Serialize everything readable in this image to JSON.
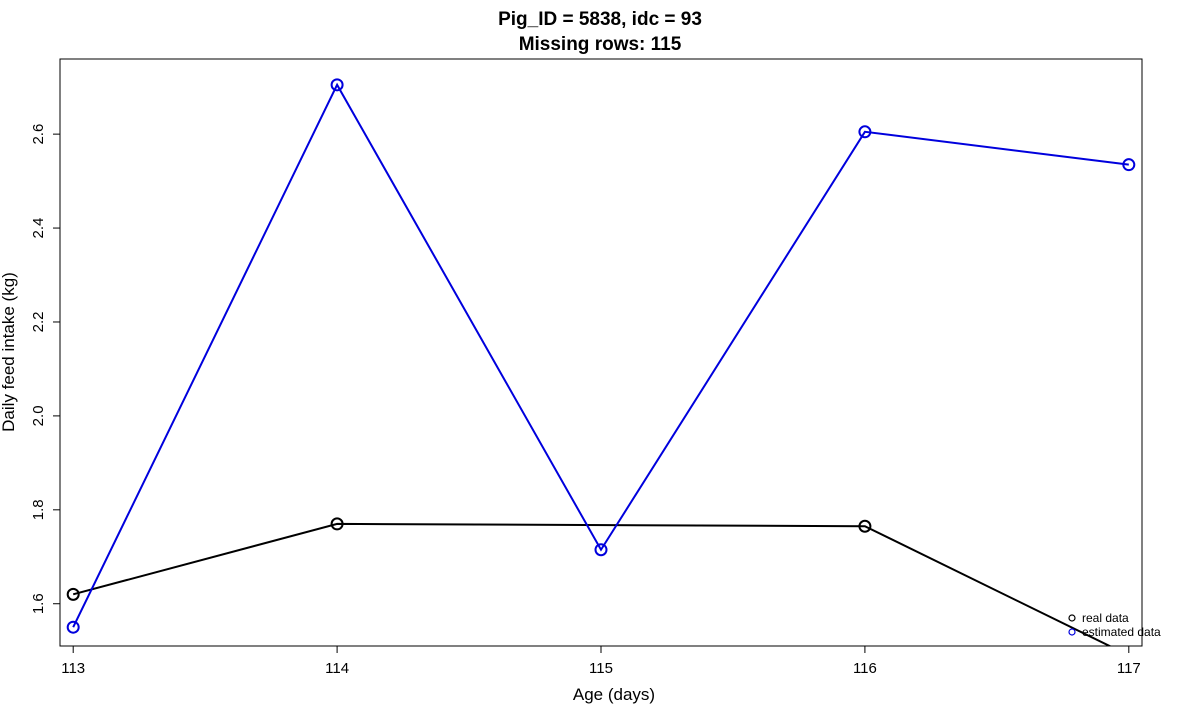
{
  "chart_data": {
    "type": "line",
    "title": "Pig_ID = 5838, idc = 93",
    "subtitle": "Missing rows: 115",
    "xlabel": "Age (days)",
    "ylabel": "Daily feed intake (kg)",
    "xlim": [
      112.95,
      117.05
    ],
    "ylim": [
      1.51,
      2.76
    ],
    "x_ticks": [
      113,
      114,
      115,
      116,
      117
    ],
    "y_ticks": [
      1.6,
      1.8,
      2.0,
      2.2,
      2.4,
      2.6
    ],
    "grid": false,
    "legend_position": "bottom-right",
    "series": [
      {
        "name": "real data",
        "color": "#000000",
        "x": [
          113,
          114,
          116,
          117
        ],
        "y": [
          1.62,
          1.77,
          1.765,
          1.49
        ],
        "markers_x": [
          113,
          114,
          116
        ],
        "markers_y": [
          1.62,
          1.77,
          1.765
        ]
      },
      {
        "name": "estimated data",
        "color": "#0000dd",
        "x": [
          113,
          114,
          115,
          116,
          117
        ],
        "y": [
          1.55,
          2.705,
          1.715,
          2.605,
          2.535
        ],
        "markers_x": [
          113,
          114,
          115,
          116,
          117
        ],
        "markers_y": [
          1.55,
          2.705,
          1.715,
          2.605,
          2.535
        ]
      }
    ]
  }
}
